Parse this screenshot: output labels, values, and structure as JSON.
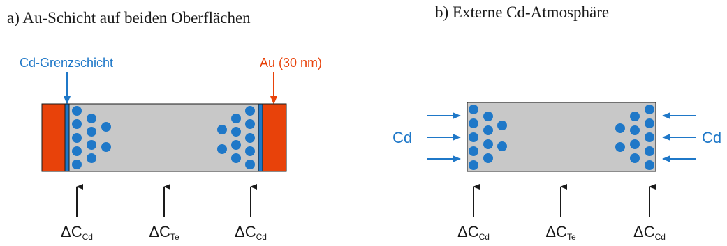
{
  "panel_a": {
    "caption": "a) Au-Schicht auf beiden Oberflächen",
    "interface_label": "Cd-Grenzschicht",
    "gold_label": "Au (30 nm)",
    "gradients": [
      {
        "base": "ΔC",
        "sub": "Cd"
      },
      {
        "base": "ΔC",
        "sub": "Te"
      },
      {
        "base": "ΔC",
        "sub": "Cd"
      }
    ]
  },
  "panel_b": {
    "caption": "b) Externe Cd-Atmosphäre",
    "left_source": "Cd",
    "right_source": "Cd",
    "gradients": [
      {
        "base": "ΔC",
        "sub": "Cd"
      },
      {
        "base": "ΔC",
        "sub": "Te"
      },
      {
        "base": "ΔC",
        "sub": "Cd"
      }
    ]
  },
  "colors": {
    "crystal": "#c8c8c8",
    "gold": "#e8420a",
    "cadmium": "#1f78c8",
    "outline": "#1a1a1a"
  }
}
